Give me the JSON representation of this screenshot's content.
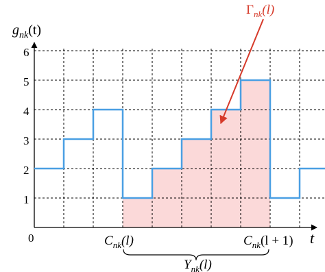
{
  "diagram": {
    "y_axis_label": {
      "base": "g",
      "sub": "nk",
      "arg": "(t)"
    },
    "x_axis_label": "t",
    "origin_label": "0",
    "y_ticks": [
      "1",
      "2",
      "3",
      "4",
      "5",
      "6"
    ],
    "step_values": [
      2,
      3,
      4,
      1,
      2,
      3,
      4,
      5,
      1,
      2
    ],
    "x_range": [
      0,
      10
    ],
    "y_range": [
      0,
      6
    ],
    "shaded_interval": [
      3,
      8
    ],
    "step_color": "#4a9fe3",
    "shade_color": "#fbd9d9",
    "arrow_color": "#d63a2a",
    "gamma_label": {
      "base": "Γ",
      "sub": "nk",
      "arg": "(l)"
    },
    "c_left_label": {
      "base": "C",
      "sub": "nk",
      "arg": "(l)"
    },
    "c_right_label": {
      "base": "C",
      "sub": "nk",
      "arg": "(l + 1)"
    },
    "y_brace_label": {
      "base": "Y",
      "sub": "nk",
      "arg": "(l)"
    }
  }
}
